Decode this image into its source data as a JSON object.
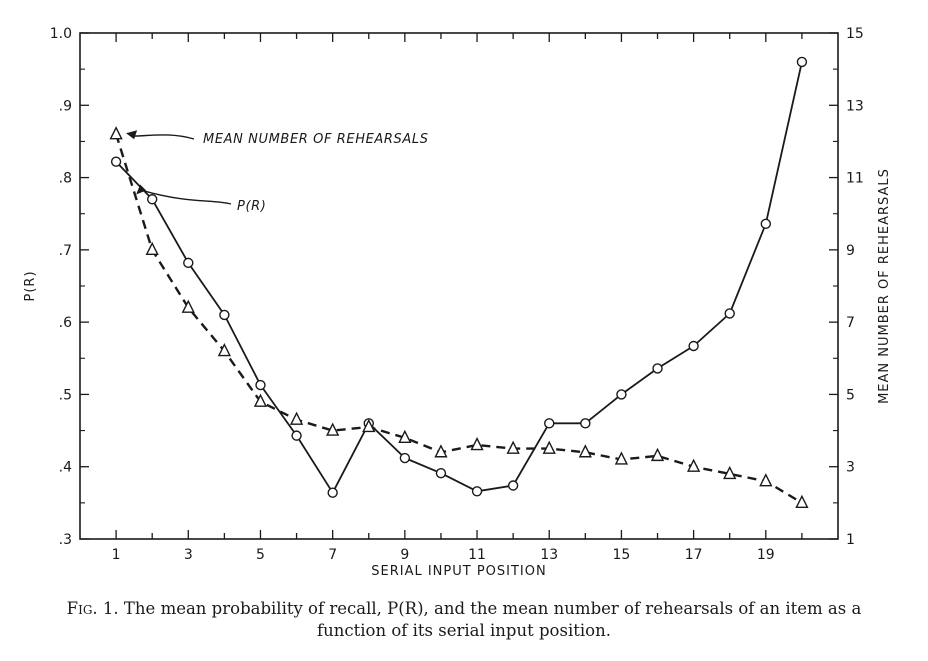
{
  "chart_data": {
    "type": "line",
    "x": [
      1,
      2,
      3,
      4,
      5,
      6,
      7,
      8,
      9,
      10,
      11,
      12,
      13,
      14,
      15,
      16,
      17,
      18,
      19,
      20
    ],
    "series": [
      {
        "name": "P(R)",
        "axis": "left",
        "line_style": "solid",
        "marker": "circle",
        "values": [
          0.822,
          0.77,
          0.682,
          0.61,
          0.513,
          0.443,
          0.364,
          0.46,
          0.412,
          0.391,
          0.366,
          0.374,
          0.46,
          0.46,
          0.5,
          0.536,
          0.567,
          0.612,
          0.736,
          0.96
        ]
      },
      {
        "name": "MEAN NUMBER OF REHEARSALS",
        "axis": "right",
        "line_style": "dashed",
        "marker": "triangle",
        "values": [
          12.2,
          9.0,
          7.4,
          6.2,
          4.8,
          4.3,
          4.0,
          4.1,
          3.8,
          3.4,
          3.6,
          3.5,
          3.5,
          3.4,
          3.2,
          3.3,
          3.0,
          2.8,
          2.6,
          2.0
        ]
      }
    ],
    "xlabel": "SERIAL INPUT POSITION",
    "ylabel_left": "P(R)",
    "ylabel_right": "MEAN NUMBER OF REHEARSALS",
    "xlim": [
      0,
      21
    ],
    "ylim_left": [
      0.3,
      1.0
    ],
    "ylim_right": [
      1,
      15
    ],
    "x_ticks": [
      1,
      3,
      5,
      7,
      9,
      11,
      13,
      15,
      17,
      19
    ],
    "x_tick_labels": [
      "1",
      "3",
      "5",
      "7",
      "9",
      "11",
      "13",
      "15",
      "17",
      "19"
    ],
    "y_left_ticks": [
      0.3,
      0.4,
      0.5,
      0.6,
      0.7,
      0.8,
      0.9,
      1.0
    ],
    "y_left_tick_labels": [
      ".3",
      ".4",
      ".5",
      ".6",
      ".7",
      ".8",
      ".9",
      "1.0"
    ],
    "y_right_ticks": [
      1,
      3,
      5,
      7,
      9,
      11,
      13,
      15
    ],
    "y_right_tick_labels": [
      "1",
      "3",
      "5",
      "7",
      "9",
      "11",
      "13",
      "15"
    ],
    "grid": false,
    "annotations": [
      {
        "text": "MEAN NUMBER OF REHEARSALS",
        "points_to": "MEAN NUMBER OF REHEARSALS",
        "target_x": 1
      },
      {
        "text": "P(R)",
        "points_to": "P(R)",
        "target_x": 1.5
      }
    ]
  },
  "caption": {
    "fig_label": "Fig. 1.",
    "text": "The mean probability of recall, P(R), and the mean number of rehearsals of an item as a function of its serial input position."
  }
}
